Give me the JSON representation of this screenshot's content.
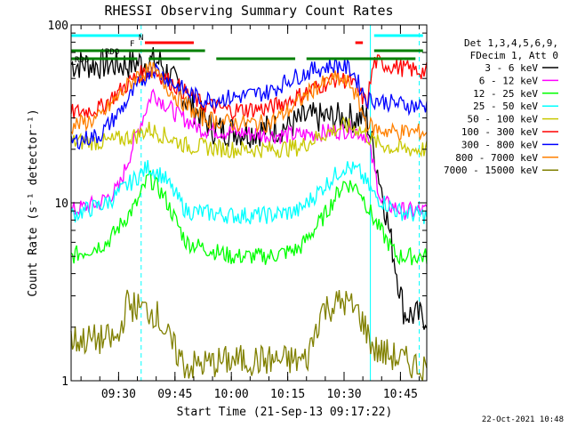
{
  "chart_data": {
    "type": "line",
    "title": "RHESSI Observing Summary Count Rates",
    "xlabel": "Start Time (21-Sep-13 09:17:22)",
    "ylabel": "Count Rate (s⁻¹ detector⁻¹)",
    "y_scale": "log",
    "ylim": [
      1,
      100
    ],
    "y_ticks": [
      "1",
      "10",
      "100"
    ],
    "x_ticks": [
      "09:30",
      "09:45",
      "10:00",
      "10:15",
      "10:30",
      "10:45"
    ],
    "x_tick_values": [
      "09:30",
      "09:45",
      "10:00",
      "10:15",
      "10:30",
      "10:45"
    ],
    "xlim": [
      "09:17:22",
      "10:52:00"
    ],
    "legend_header": [
      "Det 1,3,4,5,6,9,",
      "FDecim 1, Att 0"
    ],
    "legend_placement": "right",
    "footer_date": "22-Oct-2021 10:48",
    "series": [
      {
        "name": "3 - 6 keV",
        "color": "#000000",
        "x": [
          "09:17:22",
          "09:25",
          "09:33",
          "09:37",
          "09:41",
          "09:48",
          "09:55",
          "10:05",
          "10:15",
          "10:20",
          "10:28",
          "10:32",
          "10:36",
          "10:40",
          "10:46",
          "10:50"
        ],
        "y": [
          60,
          60,
          60,
          62,
          62,
          38,
          26,
          25,
          27,
          30,
          30,
          30,
          30,
          12,
          2.4,
          2.3
        ]
      },
      {
        "name": "6 - 12 keV",
        "color": "#ff00ff",
        "x": [
          "09:17:22",
          "09:25",
          "09:30",
          "09:35",
          "09:39",
          "09:45",
          "09:52",
          "10:00",
          "10:10",
          "10:18",
          "10:26",
          "10:32",
          "10:36",
          "10:40",
          "10:46",
          "10:50"
        ],
        "y": [
          9,
          10,
          12,
          25,
          42,
          32,
          26,
          25,
          24,
          24,
          25,
          26,
          24,
          10,
          9,
          9
        ]
      },
      {
        "name": "12 - 25 keV",
        "color": "#00ff00",
        "x": [
          "09:17:22",
          "09:27",
          "09:35",
          "09:38",
          "09:42",
          "09:48",
          "10:00",
          "10:10",
          "10:18",
          "10:24",
          "10:30",
          "10:34",
          "10:38",
          "10:44",
          "10:50"
        ],
        "y": [
          5,
          6,
          10,
          14,
          11,
          6,
          5,
          5,
          5.5,
          8,
          13,
          12,
          8,
          5,
          5
        ]
      },
      {
        "name": "25 - 50 keV",
        "color": "#00ffff",
        "x": [
          "09:17:22",
          "09:27",
          "09:35",
          "09:38",
          "09:42",
          "09:48",
          "10:00",
          "10:10",
          "10:18",
          "10:24",
          "10:30",
          "10:34",
          "10:38",
          "10:44",
          "10:50"
        ],
        "y": [
          8.5,
          10,
          14,
          16,
          14,
          9,
          8.5,
          8.5,
          9,
          12,
          16,
          15,
          11,
          9,
          8.5
        ]
      },
      {
        "name": "50 - 100 keV",
        "color": "#c8c800",
        "x": [
          "09:17:22",
          "09:27",
          "09:35",
          "09:38",
          "09:42",
          "09:48",
          "10:00",
          "10:10",
          "10:18",
          "10:24",
          "10:30",
          "10:34",
          "10:38",
          "10:44",
          "10:50"
        ],
        "y": [
          22,
          22,
          24,
          26,
          24,
          21,
          20,
          20,
          20.5,
          24,
          27,
          26,
          22,
          20,
          20
        ]
      },
      {
        "name": "100 - 300 keV",
        "color": "#ff0000",
        "x": [
          "09:17:22",
          "09:25",
          "09:30",
          "09:35",
          "09:39",
          "09:45",
          "09:52",
          "10:00",
          "10:10",
          "10:16",
          "10:22",
          "10:28",
          "10:32",
          "10:36",
          "10:38",
          "10:44",
          "10:50"
        ],
        "y": [
          32,
          34,
          42,
          52,
          56,
          46,
          36,
          33,
          34,
          38,
          44,
          50,
          48,
          36,
          62,
          58,
          55
        ]
      },
      {
        "name": "300 - 800 keV",
        "color": "#0000ff",
        "x": [
          "09:17:22",
          "09:25",
          "09:30",
          "09:35",
          "09:39",
          "09:45",
          "09:52",
          "10:00",
          "10:10",
          "10:16",
          "10:22",
          "10:28",
          "10:32",
          "10:36",
          "10:38",
          "10:44",
          "10:50"
        ],
        "y": [
          22,
          24,
          32,
          45,
          58,
          46,
          38,
          39,
          42,
          50,
          56,
          60,
          56,
          38,
          38,
          36,
          35
        ]
      },
      {
        "name": "800 - 7000 keV",
        "color": "#ff8000",
        "x": [
          "09:17:22",
          "09:25",
          "09:30",
          "09:35",
          "09:39",
          "09:45",
          "09:52",
          "10:00",
          "10:10",
          "10:16",
          "10:22",
          "10:28",
          "10:32",
          "10:36",
          "10:38",
          "10:44",
          "10:50"
        ],
        "y": [
          27,
          30,
          40,
          52,
          56,
          40,
          30,
          28,
          28,
          34,
          44,
          50,
          46,
          28,
          26,
          25,
          25
        ]
      },
      {
        "name": "7000 - 15000 keV",
        "color": "#808000",
        "x": [
          "09:17:22",
          "09:30",
          "09:32",
          "09:40",
          "09:44",
          "09:48",
          "10:00",
          "10:20",
          "10:24",
          "10:30",
          "10:34",
          "10:38",
          "10:50"
        ],
        "y": [
          1.7,
          1.7,
          2.7,
          2.4,
          1.6,
          1.2,
          1.3,
          1.3,
          2.5,
          2.8,
          2.4,
          1.5,
          1.2
        ]
      }
    ],
    "flag_bars": [
      {
        "label": "N",
        "color": "#00ffff",
        "segments": [
          [
            "09:17:22",
            "09:36"
          ],
          [
            "10:38",
            "10:51"
          ]
        ]
      },
      {
        "label": "F",
        "color": "#ff0000",
        "segments": [
          [
            "09:37",
            "09:50"
          ],
          [
            "10:33",
            "10:35"
          ]
        ]
      },
      {
        "label": "RDO",
        "color": "#008000",
        "segments": [
          [
            "09:17:22",
            "09:53"
          ],
          [
            "10:38",
            "10:51"
          ]
        ]
      },
      {
        "label": "R06",
        "color": "#008000",
        "segments": [
          [
            "09:17:22",
            "09:35"
          ],
          [
            "09:38",
            "09:49"
          ],
          [
            "09:56",
            "10:17"
          ],
          [
            "10:20",
            "10:49"
          ]
        ]
      }
    ],
    "vertical_lines": [
      {
        "color": "#00ffff",
        "style": "solid",
        "x": [
          "09:17:22",
          "10:37"
        ]
      },
      {
        "color": "#00ffff",
        "style": "dashed",
        "x": [
          "09:36",
          "10:50"
        ]
      }
    ],
    "grid": false
  }
}
